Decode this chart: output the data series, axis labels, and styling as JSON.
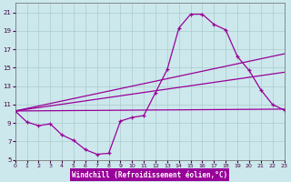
{
  "xlabel": "Windchill (Refroidissement éolien,°C)",
  "xlim": [
    0,
    23
  ],
  "ylim": [
    5,
    22
  ],
  "yticks": [
    5,
    7,
    9,
    11,
    13,
    15,
    17,
    19,
    21
  ],
  "xticks": [
    0,
    1,
    2,
    3,
    4,
    5,
    6,
    7,
    8,
    9,
    10,
    11,
    12,
    13,
    14,
    15,
    16,
    17,
    18,
    19,
    20,
    21,
    22,
    23
  ],
  "bg_color": "#cce8ec",
  "grid_color": "#aacccc",
  "line_color": "#990099",
  "curve_x": [
    0,
    1,
    2,
    3,
    4,
    5,
    6,
    7,
    8,
    9,
    10,
    11,
    12,
    13,
    14,
    15,
    16,
    17,
    18,
    19,
    20,
    21,
    22,
    23
  ],
  "curve_y": [
    10.3,
    9.1,
    8.7,
    8.9,
    7.7,
    7.1,
    6.1,
    5.6,
    5.7,
    9.2,
    9.6,
    9.8,
    12.3,
    14.8,
    19.3,
    20.8,
    20.8,
    19.7,
    19.1,
    16.2,
    14.7,
    12.6,
    11.0,
    10.4
  ],
  "line1_x": [
    0,
    23
  ],
  "line1_y": [
    10.3,
    16.5
  ],
  "line2_x": [
    0,
    23
  ],
  "line2_y": [
    10.3,
    14.5
  ],
  "line3_x": [
    0,
    23
  ],
  "line3_y": [
    10.3,
    10.5
  ]
}
